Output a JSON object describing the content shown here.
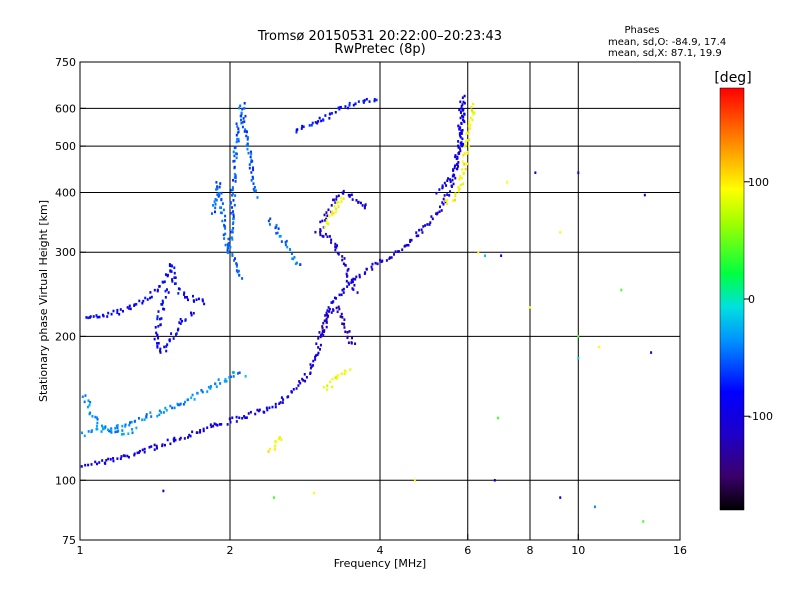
{
  "chart_data": {
    "type": "scatter",
    "title": "Tromsø 20150531 20:22:00–20:23:43",
    "subtitle": "RwPretec (8p)",
    "xlabel": "Frequency [MHz]",
    "ylabel": "Stationary phase Virtual Height [km]",
    "x_scale": "log",
    "y_scale": "log",
    "xlim": [
      1,
      16
    ],
    "ylim": [
      75,
      750
    ],
    "x_ticks": [
      1,
      2,
      4,
      6,
      8,
      10,
      16
    ],
    "x_tick_labels": [
      "1",
      "2",
      "4",
      "6",
      "8",
      "10",
      "16"
    ],
    "y_ticks": [
      75,
      100,
      200,
      300,
      400,
      500,
      600,
      750
    ],
    "y_tick_labels": [
      "75",
      "100",
      "200",
      "300",
      "400",
      "500",
      "600",
      "750"
    ],
    "grid": true,
    "phase_stats": {
      "header": "Phases",
      "line_o": "mean, sd,O: -84.9, 17.4",
      "line_x": "mean, sd,X:  87.1, 19.9"
    },
    "colorbar": {
      "label": "[deg]",
      "range": [
        -180,
        180
      ],
      "ticks": [
        100,
        0,
        -100
      ],
      "tick_labels": [
        "100",
        "0",
        "-100"
      ]
    },
    "series": [
      {
        "values": [
          [
            1.02,
            108
          ],
          [
            1.1,
            109
          ],
          [
            1.2,
            111
          ],
          [
            1.3,
            114
          ],
          [
            1.4,
            117
          ],
          [
            1.5,
            120
          ],
          [
            1.6,
            123
          ],
          [
            1.7,
            126
          ],
          [
            1.8,
            129
          ],
          [
            1.9,
            131
          ],
          [
            2.0,
            133
          ],
          [
            2.1,
            135
          ],
          [
            2.2,
            137
          ],
          [
            2.3,
            139
          ],
          [
            2.4,
            142
          ],
          [
            2.5,
            145
          ],
          [
            2.6,
            150
          ],
          [
            2.7,
            155
          ],
          [
            2.8,
            162
          ],
          [
            2.9,
            170
          ],
          [
            3.0,
            190
          ],
          [
            3.2,
            235
          ],
          [
            3.5,
            262
          ],
          [
            4.0,
            285
          ],
          [
            4.4,
            305
          ],
          [
            4.8,
            330
          ],
          [
            5.2,
            360
          ],
          [
            5.5,
            400
          ],
          [
            5.7,
            460
          ],
          [
            5.8,
            540
          ],
          [
            5.85,
            620
          ]
        ],
        "phase": -100
      },
      {
        "values": [
          [
            1.02,
            125
          ],
          [
            1.1,
            127
          ],
          [
            1.2,
            130
          ],
          [
            1.3,
            133
          ],
          [
            1.4,
            137
          ],
          [
            1.5,
            140
          ],
          [
            1.6,
            145
          ],
          [
            1.7,
            150
          ],
          [
            1.8,
            155
          ],
          [
            1.9,
            160
          ],
          [
            2.0,
            165
          ],
          [
            2.1,
            170
          ]
        ],
        "phase": -40
      },
      {
        "values": [
          [
            1.02,
            150
          ],
          [
            1.05,
            140
          ],
          [
            1.1,
            130
          ],
          [
            1.2,
            125
          ],
          [
            1.3,
            128
          ]
        ],
        "phase": -40
      },
      {
        "values": [
          [
            1.0,
            218
          ],
          [
            1.1,
            220
          ],
          [
            1.2,
            225
          ],
          [
            1.3,
            235
          ],
          [
            1.4,
            245
          ],
          [
            1.45,
            255
          ],
          [
            1.5,
            270
          ],
          [
            1.52,
            285
          ],
          [
            1.55,
            260
          ],
          [
            1.6,
            245
          ],
          [
            1.7,
            238
          ],
          [
            1.8,
            235
          ]
        ],
        "phase": -85
      },
      {
        "values": [
          [
            1.5,
            250
          ],
          [
            1.45,
            225
          ],
          [
            1.42,
            200
          ],
          [
            1.45,
            185
          ],
          [
            1.5,
            190
          ],
          [
            1.55,
            205
          ],
          [
            1.6,
            215
          ],
          [
            1.7,
            225
          ]
        ],
        "phase": -85
      },
      {
        "values": [
          [
            1.85,
            360
          ],
          [
            1.88,
            400
          ],
          [
            1.9,
            420
          ],
          [
            1.92,
            380
          ],
          [
            1.95,
            330
          ],
          [
            2.0,
            300
          ],
          [
            2.05,
            280
          ],
          [
            2.1,
            260
          ]
        ],
        "phase": -55
      },
      {
        "values": [
          [
            2.0,
            300
          ],
          [
            2.03,
            400
          ],
          [
            2.05,
            470
          ],
          [
            2.07,
            540
          ],
          [
            2.1,
            590
          ],
          [
            2.12,
            610
          ],
          [
            2.15,
            530
          ],
          [
            2.2,
            460
          ],
          [
            2.25,
            390
          ]
        ],
        "phase": -55
      },
      {
        "values": [
          [
            2.4,
            350
          ],
          [
            2.5,
            330
          ],
          [
            2.6,
            310
          ],
          [
            2.7,
            290
          ],
          [
            2.8,
            280
          ]
        ],
        "phase": -50
      },
      {
        "values": [
          [
            2.7,
            540
          ],
          [
            3.0,
            560
          ],
          [
            3.2,
            585
          ],
          [
            3.5,
            610
          ],
          [
            3.8,
            620
          ],
          [
            4.0,
            625
          ]
        ],
        "phase": -80
      },
      {
        "values": [
          [
            3.0,
            330
          ],
          [
            3.1,
            350
          ],
          [
            3.2,
            375
          ],
          [
            3.3,
            395
          ],
          [
            3.4,
            400
          ],
          [
            3.5,
            395
          ],
          [
            3.6,
            385
          ],
          [
            3.7,
            375
          ],
          [
            3.8,
            370
          ]
        ],
        "phase": -105
      },
      {
        "values": [
          [
            3.0,
            330
          ],
          [
            3.2,
            320
          ],
          [
            3.3,
            300
          ],
          [
            3.4,
            280
          ],
          [
            3.5,
            260
          ],
          [
            3.6,
            245
          ]
        ],
        "phase": -105
      },
      {
        "values": [
          [
            3.05,
            200
          ],
          [
            3.1,
            215
          ],
          [
            3.2,
            225
          ],
          [
            3.3,
            230
          ],
          [
            3.4,
            210
          ],
          [
            3.5,
            195
          ],
          [
            3.6,
            190
          ]
        ],
        "phase": -120
      },
      {
        "values": [
          [
            3.1,
            155
          ],
          [
            3.2,
            160
          ],
          [
            3.3,
            165
          ],
          [
            3.4,
            170
          ],
          [
            3.5,
            172
          ]
        ],
        "phase": 90
      },
      {
        "values": [
          [
            3.1,
            340
          ],
          [
            3.2,
            360
          ],
          [
            3.3,
            380
          ],
          [
            3.4,
            395
          ]
        ],
        "phase": 90
      },
      {
        "values": [
          [
            5.4,
            380
          ],
          [
            5.6,
            390
          ],
          [
            5.8,
            410
          ],
          [
            5.9,
            450
          ],
          [
            6.0,
            520
          ],
          [
            6.1,
            580
          ],
          [
            6.2,
            620
          ]
        ],
        "phase": 95
      },
      {
        "values": [
          [
            5.2,
            400
          ],
          [
            5.5,
            420
          ],
          [
            5.7,
            450
          ],
          [
            5.8,
            500
          ],
          [
            5.85,
            560
          ],
          [
            5.9,
            610
          ],
          [
            5.95,
            640
          ]
        ],
        "phase": -95
      },
      {
        "values": [
          [
            2.4,
            115
          ],
          [
            2.5,
            120
          ],
          [
            2.55,
            125
          ]
        ],
        "phase": 95
      }
    ],
    "outliers": [
      [
        1.47,
        95,
        -100
      ],
      [
        2.45,
        92,
        40
      ],
      [
        2.95,
        94,
        95
      ],
      [
        4.7,
        100,
        100
      ],
      [
        6.8,
        100,
        -100
      ],
      [
        9.2,
        92,
        -100
      ],
      [
        10.8,
        88,
        -40
      ],
      [
        13.5,
        82,
        40
      ],
      [
        6.3,
        300,
        95
      ],
      [
        6.5,
        295,
        -20
      ],
      [
        7.0,
        295,
        -100
      ],
      [
        8.0,
        230,
        95
      ],
      [
        12.2,
        250,
        40
      ],
      [
        7.2,
        420,
        95
      ],
      [
        8.2,
        440,
        -100
      ],
      [
        10.0,
        440,
        -100
      ],
      [
        13.6,
        395,
        -100
      ],
      [
        9.2,
        330,
        95
      ],
      [
        10.0,
        200,
        40
      ],
      [
        11.0,
        190,
        95
      ],
      [
        10.0,
        180,
        -20
      ],
      [
        14.0,
        185,
        -100
      ],
      [
        6.9,
        135,
        40
      ],
      [
        2.15,
        165,
        -20
      ]
    ]
  }
}
